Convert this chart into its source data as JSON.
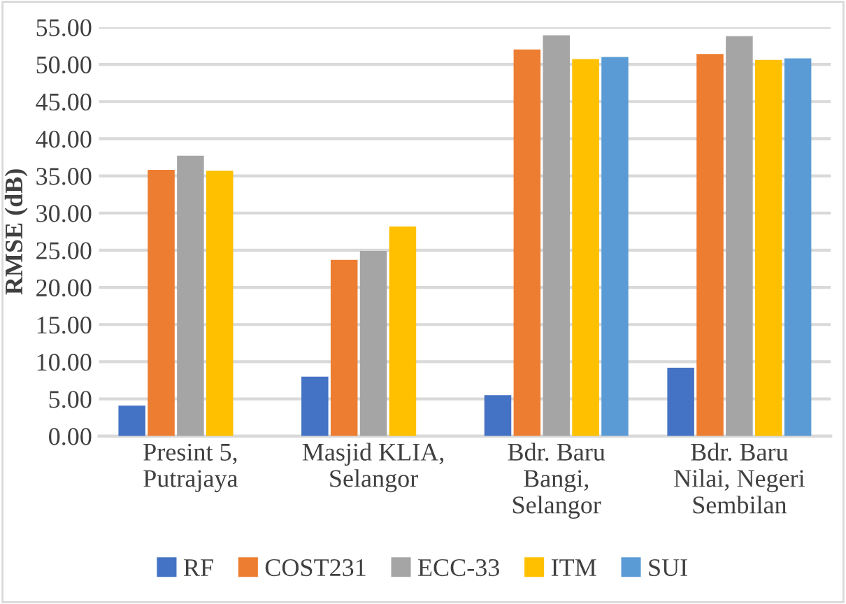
{
  "chart_data": {
    "type": "bar",
    "ylabel": "RMSE (dB)",
    "categories": [
      "Presint 5,\nPutrajaya",
      "Masjid KLIA,\nSelangor",
      "Bdr. Baru\nBangi,\nSelangor",
      "Bdr. Baru\nNilai, Negeri\nSembilan"
    ],
    "series": [
      {
        "name": "RF",
        "color": "#4472c4",
        "values": [
          4.1,
          8.0,
          5.5,
          9.2
        ]
      },
      {
        "name": "COST231",
        "color": "#ed7d31",
        "values": [
          35.8,
          23.7,
          52.0,
          51.4
        ]
      },
      {
        "name": "ECC-33",
        "color": "#a5a5a5",
        "values": [
          37.7,
          24.9,
          53.9,
          53.8
        ]
      },
      {
        "name": "ITM",
        "color": "#ffc000",
        "values": [
          35.7,
          28.2,
          50.7,
          50.6
        ]
      },
      {
        "name": "SUI",
        "color": "#5b9bd5",
        "values": [
          null,
          null,
          51.0,
          50.8
        ]
      }
    ],
    "ylim": [
      0,
      55
    ],
    "yticks": [
      {
        "value": 0,
        "label": "0.00"
      },
      {
        "value": 5,
        "label": "5.00"
      },
      {
        "value": 10,
        "label": "10.00"
      },
      {
        "value": 15,
        "label": "15.00"
      },
      {
        "value": 20,
        "label": "20.00"
      },
      {
        "value": 25,
        "label": "25.00"
      },
      {
        "value": 30,
        "label": "30.00"
      },
      {
        "value": 35,
        "label": "35.00"
      },
      {
        "value": 40,
        "label": "40.00"
      },
      {
        "value": 45,
        "label": "45.00"
      },
      {
        "value": 50,
        "label": "50.00"
      },
      {
        "value": 55,
        "label": "55.00"
      }
    ],
    "grid": "y",
    "legend": "bottom"
  }
}
